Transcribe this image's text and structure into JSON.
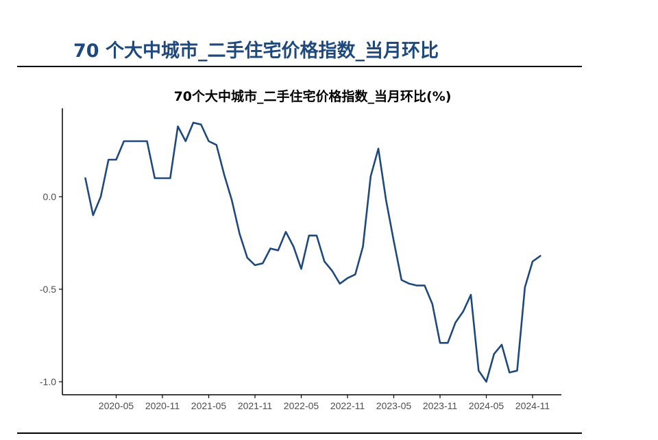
{
  "header": {
    "title": "70 个大中城市_二手住宅价格指数_当月环比"
  },
  "colors": {
    "title": "#1f497d",
    "line": "#1f497d",
    "axis": "#000000",
    "tick_label": "#4d4d4d"
  },
  "chart_data": {
    "type": "line",
    "title": "70个大中城市_二手住宅价格指数_当月环比(%)",
    "xlabel": "",
    "ylabel": "",
    "x_ticks": [
      "2020-05",
      "2020-11",
      "2021-05",
      "2021-11",
      "2022-05",
      "2022-11",
      "2023-05",
      "2023-11",
      "2024-05",
      "2024-11"
    ],
    "y_ticks": [
      0.0,
      -0.5,
      -1.0
    ],
    "y_tick_labels": [
      "0.0",
      "-0.5",
      "-1.0"
    ],
    "ylim": [
      -1.05,
      0.45
    ],
    "grid": false,
    "legend": "none",
    "series": [
      {
        "x": [
          "2020-01",
          "2020-02",
          "2020-03",
          "2020-04",
          "2020-05",
          "2020-06",
          "2020-07",
          "2020-08",
          "2020-09",
          "2020-10",
          "2020-11",
          "2020-12",
          "2021-01",
          "2021-02",
          "2021-03",
          "2021-04",
          "2021-05",
          "2021-06",
          "2021-07",
          "2021-08",
          "2021-09",
          "2021-10",
          "2021-11",
          "2021-12",
          "2022-01",
          "2022-02",
          "2022-03",
          "2022-04",
          "2022-05",
          "2022-06",
          "2022-07",
          "2022-08",
          "2022-09",
          "2022-10",
          "2022-11",
          "2022-12",
          "2023-01",
          "2023-02",
          "2023-03",
          "2023-04",
          "2023-05",
          "2023-06",
          "2023-07",
          "2023-08",
          "2023-09",
          "2023-10",
          "2023-11",
          "2023-12",
          "2024-01",
          "2024-02",
          "2024-03",
          "2024-04",
          "2024-05",
          "2024-06",
          "2024-07",
          "2024-08",
          "2024-09",
          "2024-10",
          "2024-11",
          "2024-12"
        ],
        "values": [
          0.1,
          -0.1,
          0.0,
          0.2,
          0.2,
          0.3,
          0.3,
          0.3,
          0.3,
          0.1,
          0.1,
          0.1,
          0.38,
          0.3,
          0.4,
          0.39,
          0.3,
          0.28,
          0.12,
          -0.02,
          -0.2,
          -0.33,
          -0.37,
          -0.36,
          -0.28,
          -0.29,
          -0.19,
          -0.27,
          -0.39,
          -0.21,
          -0.21,
          -0.35,
          -0.4,
          -0.47,
          -0.44,
          -0.42,
          -0.27,
          0.11,
          0.26,
          -0.02,
          -0.24,
          -0.45,
          -0.47,
          -0.48,
          -0.48,
          -0.58,
          -0.79,
          -0.79,
          -0.68,
          -0.62,
          -0.53,
          -0.94,
          -1.0,
          -0.85,
          -0.8,
          -0.95,
          -0.94,
          -0.49,
          -0.35,
          -0.32
        ]
      }
    ]
  }
}
